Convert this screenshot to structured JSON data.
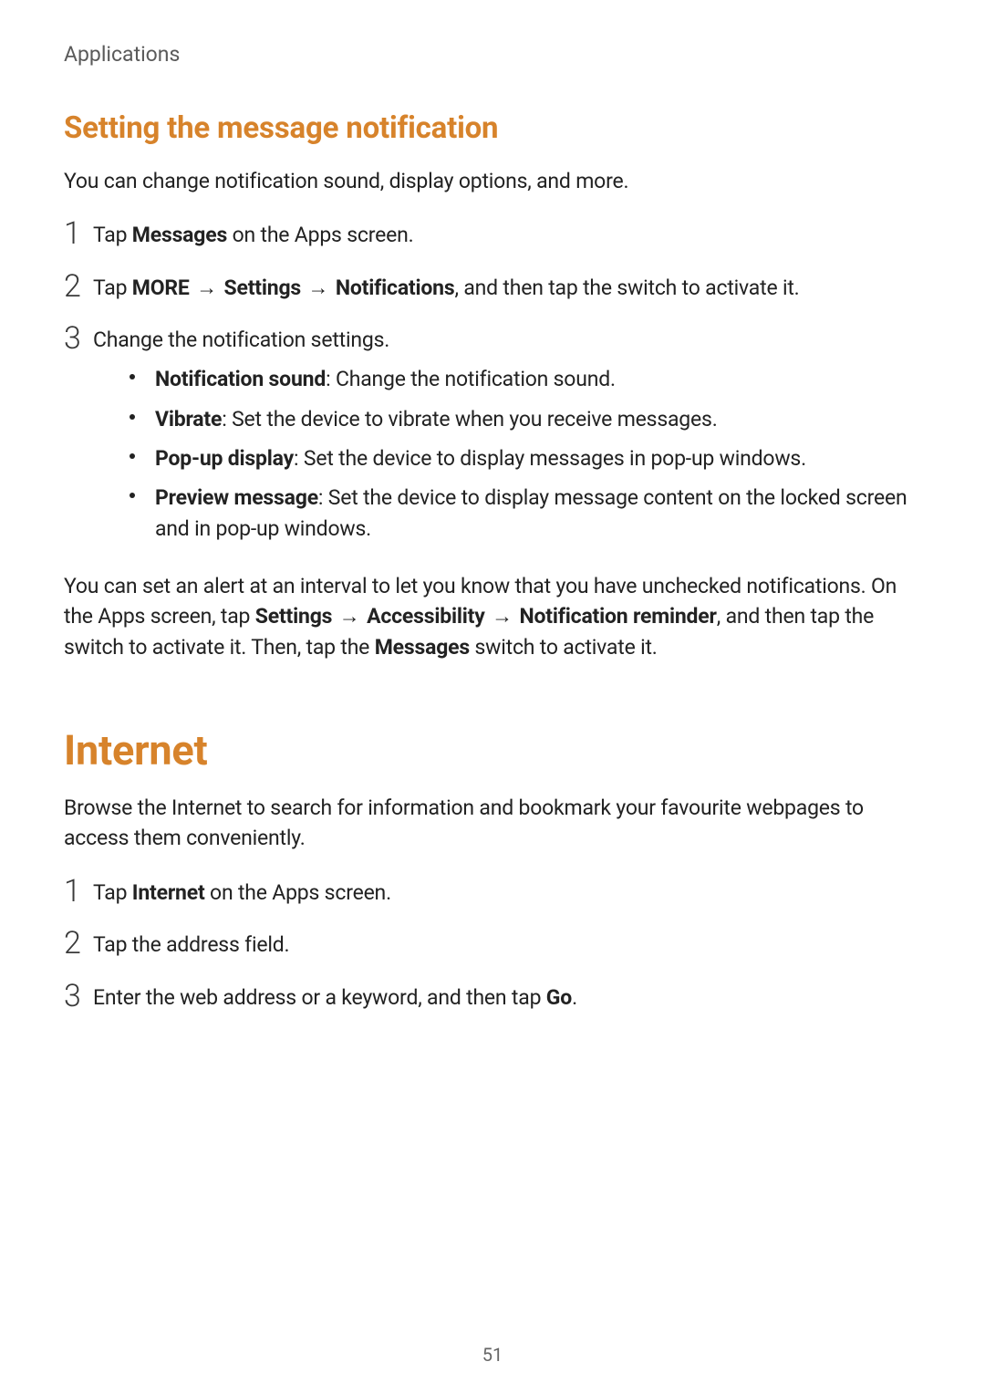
{
  "header": {
    "breadcrumb": "Applications"
  },
  "colors": {
    "accent": "#d7832b",
    "text": "#222222",
    "muted": "#5a5a5a",
    "background": "#ffffff"
  },
  "arrow_glyph": "→",
  "page_number": "51",
  "section1": {
    "title": "Setting the message notification",
    "intro": "You can change notification sound, display options, and more.",
    "steps": [
      {
        "num": "1",
        "parts": [
          {
            "t": "Tap "
          },
          {
            "t": "Messages",
            "bold": true
          },
          {
            "t": " on the Apps screen."
          }
        ]
      },
      {
        "num": "2",
        "parts": [
          {
            "t": "Tap "
          },
          {
            "t": "MORE",
            "bold": true
          },
          {
            "t": " ",
            "arrow_after": true
          },
          {
            "t": " "
          },
          {
            "t": "Settings",
            "bold": true
          },
          {
            "t": " ",
            "arrow_after": true
          },
          {
            "t": " "
          },
          {
            "t": "Notifications",
            "bold": true
          },
          {
            "t": ", and then tap the switch to activate it."
          }
        ]
      },
      {
        "num": "3",
        "parts": [
          {
            "t": "Change the notification settings."
          }
        ],
        "bullets": [
          {
            "label": "Notification sound",
            "desc": ": Change the notification sound."
          },
          {
            "label": "Vibrate",
            "desc": ": Set the device to vibrate when you receive messages."
          },
          {
            "label": "Pop-up display",
            "desc": ": Set the device to display messages in pop-up windows."
          },
          {
            "label": "Preview message",
            "desc": ": Set the device to display message content on the locked screen and in pop-up windows."
          }
        ]
      }
    ],
    "outro": {
      "parts": [
        {
          "t": "You can set an alert at an interval to let you know that you have unchecked notifications. On the Apps screen, tap "
        },
        {
          "t": "Settings",
          "bold": true
        },
        {
          "t": " ",
          "arrow_after": true
        },
        {
          "t": " "
        },
        {
          "t": "Accessibility",
          "bold": true
        },
        {
          "t": " ",
          "arrow_after": true
        },
        {
          "t": " "
        },
        {
          "t": "Notification reminder",
          "bold": true
        },
        {
          "t": ", and then tap the switch to activate it. Then, tap the "
        },
        {
          "t": "Messages",
          "bold": true
        },
        {
          "t": " switch to activate it."
        }
      ]
    }
  },
  "section2": {
    "title": "Internet",
    "intro": "Browse the Internet to search for information and bookmark your favourite webpages to access them conveniently.",
    "steps": [
      {
        "num": "1",
        "parts": [
          {
            "t": "Tap "
          },
          {
            "t": "Internet",
            "bold": true
          },
          {
            "t": " on the Apps screen."
          }
        ]
      },
      {
        "num": "2",
        "parts": [
          {
            "t": "Tap the address field."
          }
        ]
      },
      {
        "num": "3",
        "parts": [
          {
            "t": "Enter the web address or a keyword, and then tap "
          },
          {
            "t": "Go",
            "bold": true
          },
          {
            "t": "."
          }
        ]
      }
    ]
  }
}
